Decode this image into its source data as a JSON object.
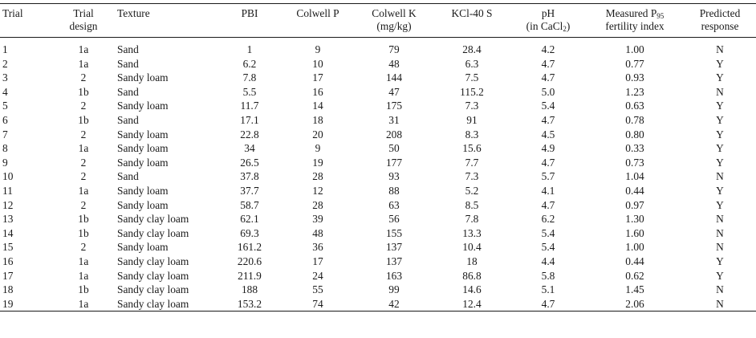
{
  "headers": {
    "trial": "Trial",
    "design_line1": "Trial",
    "design_line2": "design",
    "texture": "Texture",
    "pbi": "PBI",
    "colwell_p": "Colwell P",
    "colwell_k_line1": "Colwell K",
    "colwell_k_line2": "(mg/kg)",
    "kcl": "KCl-40 S",
    "ph_line1": "pH",
    "ph_line2_pre": "(in CaCl",
    "ph_line2_sub": "2",
    "ph_line2_post": ")",
    "measured_line1_pre": "Measured P",
    "measured_line1_sub": "95",
    "measured_line2": "fertility index",
    "predicted_line1": "Predicted",
    "predicted_line2": "response"
  },
  "rows": [
    [
      "1",
      "1a",
      "Sand",
      "1",
      "9",
      "79",
      "28.4",
      "4.2",
      "1.00",
      "N"
    ],
    [
      "2",
      "1a",
      "Sand",
      "6.2",
      "10",
      "48",
      "6.3",
      "4.7",
      "0.77",
      "Y"
    ],
    [
      "3",
      "2",
      "Sandy loam",
      "7.8",
      "17",
      "144",
      "7.5",
      "4.7",
      "0.93",
      "Y"
    ],
    [
      "4",
      "1b",
      "Sand",
      "5.5",
      "16",
      "47",
      "115.2",
      "5.0",
      "1.23",
      "N"
    ],
    [
      "5",
      "2",
      "Sandy loam",
      "11.7",
      "14",
      "175",
      "7.3",
      "5.4",
      "0.63",
      "Y"
    ],
    [
      "6",
      "1b",
      "Sand",
      "17.1",
      "18",
      "31",
      "91",
      "4.7",
      "0.78",
      "Y"
    ],
    [
      "7",
      "2",
      "Sandy loam",
      "22.8",
      "20",
      "208",
      "8.3",
      "4.5",
      "0.80",
      "Y"
    ],
    [
      "8",
      "1a",
      "Sandy loam",
      "34",
      "9",
      "50",
      "15.6",
      "4.9",
      "0.33",
      "Y"
    ],
    [
      "9",
      "2",
      "Sandy loam",
      "26.5",
      "19",
      "177",
      "7.7",
      "4.7",
      "0.73",
      "Y"
    ],
    [
      "10",
      "2",
      "Sand",
      "37.8",
      "28",
      "93",
      "7.3",
      "5.7",
      "1.04",
      "N"
    ],
    [
      "11",
      "1a",
      "Sandy loam",
      "37.7",
      "12",
      "88",
      "5.2",
      "4.1",
      "0.44",
      "Y"
    ],
    [
      "12",
      "2",
      "Sandy loam",
      "58.7",
      "28",
      "63",
      "8.5",
      "4.7",
      "0.97",
      "Y"
    ],
    [
      "13",
      "1b",
      "Sandy clay loam",
      "62.1",
      "39",
      "56",
      "7.8",
      "6.2",
      "1.30",
      "N"
    ],
    [
      "14",
      "1b",
      "Sandy clay loam",
      "69.3",
      "48",
      "155",
      "13.3",
      "5.4",
      "1.60",
      "N"
    ],
    [
      "15",
      "2",
      "Sandy loam",
      "161.2",
      "36",
      "137",
      "10.4",
      "5.4",
      "1.00",
      "N"
    ],
    [
      "16",
      "1a",
      "Sandy clay loam",
      "220.6",
      "17",
      "137",
      "18",
      "4.4",
      "0.44",
      "Y"
    ],
    [
      "17",
      "1a",
      "Sandy clay loam",
      "211.9",
      "24",
      "163",
      "86.8",
      "5.8",
      "0.62",
      "Y"
    ],
    [
      "18",
      "1b",
      "Sandy clay loam",
      "188",
      "55",
      "99",
      "14.6",
      "5.1",
      "1.45",
      "N"
    ],
    [
      "19",
      "1a",
      "Sandy clay loam",
      "153.2",
      "74",
      "42",
      "12.4",
      "4.7",
      "2.06",
      "N"
    ]
  ]
}
